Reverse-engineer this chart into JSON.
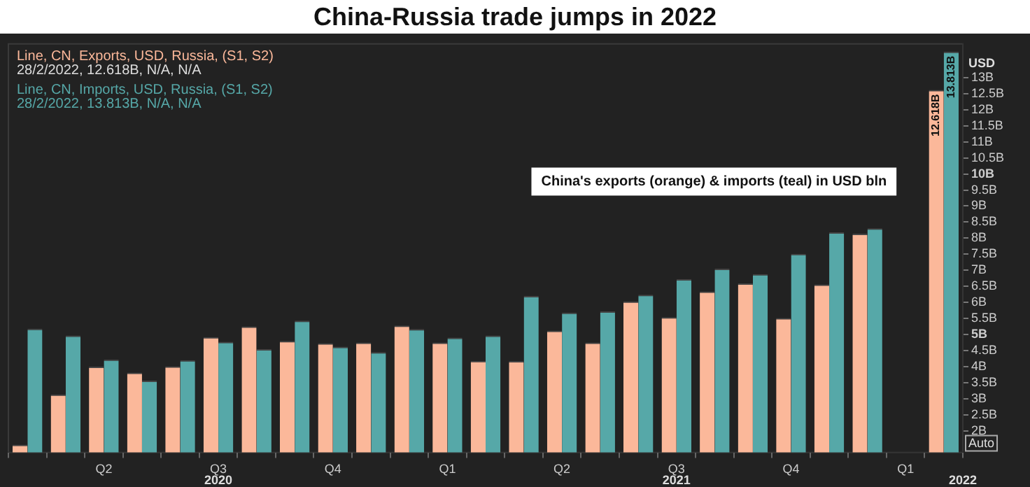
{
  "chart_data": {
    "type": "bar",
    "title": "China-Russia trade jumps in 2022",
    "ylabel": "USD",
    "categories": [
      null,
      null,
      "Q2",
      null,
      null,
      "Q3",
      null,
      null,
      "Q4",
      null,
      null,
      "Q1",
      null,
      null,
      "Q2",
      null,
      null,
      "Q3",
      null,
      null,
      "Q4",
      null,
      null,
      "Q1",
      null
    ],
    "series": [
      {
        "name": "Line, CN, Exports, USD, Russia, (S1, S2)",
        "color": "#fbb89a",
        "values": [
          1.57,
          3.13,
          4.0,
          3.81,
          4.01,
          4.92,
          5.25,
          4.8,
          4.73,
          4.75,
          5.28,
          4.75,
          4.18,
          4.17,
          5.12,
          4.75,
          6.03,
          5.54,
          6.34,
          6.59,
          5.51,
          6.56,
          8.14,
          null,
          12.618
        ],
        "value_labels": [
          null,
          null,
          null,
          null,
          null,
          null,
          null,
          null,
          null,
          null,
          null,
          null,
          null,
          null,
          null,
          null,
          null,
          null,
          null,
          null,
          null,
          null,
          null,
          null,
          "12.618B"
        ]
      },
      {
        "name": "Line, CN, Imports, USD, Russia, (S1, S2)",
        "color": "#56a8a8",
        "values": [
          5.18,
          4.97,
          4.22,
          3.56,
          4.2,
          4.77,
          4.54,
          5.43,
          4.62,
          4.45,
          5.17,
          4.9,
          4.97,
          6.2,
          5.68,
          5.72,
          6.24,
          6.72,
          7.05,
          6.88,
          7.51,
          8.18,
          8.31,
          null,
          13.813
        ],
        "value_labels": [
          null,
          null,
          null,
          null,
          null,
          null,
          null,
          null,
          null,
          null,
          null,
          null,
          null,
          null,
          null,
          null,
          null,
          null,
          null,
          null,
          null,
          null,
          null,
          null,
          "13.813B"
        ]
      }
    ],
    "ylim": [
      1.33,
      14.05
    ],
    "yticks": [
      {
        "value": 2,
        "label": "2B"
      },
      {
        "value": 2.5,
        "label": "2.5B"
      },
      {
        "value": 3,
        "label": "3B"
      },
      {
        "value": 3.5,
        "label": "3.5B"
      },
      {
        "value": 4,
        "label": "4B"
      },
      {
        "value": 4.5,
        "label": "4.5B"
      },
      {
        "value": 5,
        "label": "5B"
      },
      {
        "value": 5.5,
        "label": "5.5B"
      },
      {
        "value": 6,
        "label": "6B"
      },
      {
        "value": 6.5,
        "label": "6.5B"
      },
      {
        "value": 7,
        "label": "7B"
      },
      {
        "value": 7.5,
        "label": "7.5B"
      },
      {
        "value": 8,
        "label": "8B"
      },
      {
        "value": 8.5,
        "label": "8.5B"
      },
      {
        "value": 9,
        "label": "9B"
      },
      {
        "value": 9.5,
        "label": "9.5B"
      },
      {
        "value": 10,
        "label": "10B"
      },
      {
        "value": 10.5,
        "label": "10.5B"
      },
      {
        "value": 11,
        "label": "11B"
      },
      {
        "value": 11.5,
        "label": "11.5B"
      },
      {
        "value": 12,
        "label": "12B"
      },
      {
        "value": 12.5,
        "label": "12.5B"
      },
      {
        "value": 13,
        "label": "13B"
      }
    ],
    "annotations": [
      "28/2/2022, 12.618B, N/A, N/A",
      "28/2/2022, 13.813B, N/A, N/A",
      "China's exports (orange) & imports (teal) in USD bln",
      "2020",
      "2021",
      "2022",
      "Auto"
    ],
    "legend": "top left",
    "grid": false
  }
}
